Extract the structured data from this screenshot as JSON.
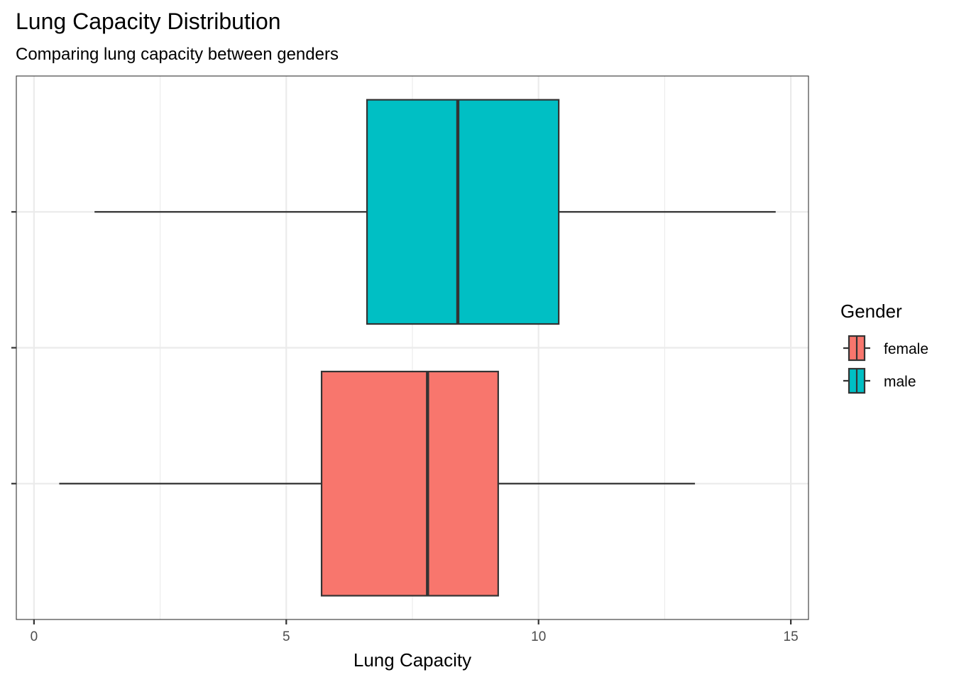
{
  "chart_data": {
    "type": "boxplot",
    "title": "Lung Capacity Distribution",
    "subtitle": "Comparing lung capacity between genders",
    "xlabel": "Lung Capacity",
    "ylabel": "",
    "orientation": "horizontal",
    "xlim": [
      -0.35,
      15.35
    ],
    "xticks": [
      0,
      5,
      10,
      15
    ],
    "grid": true,
    "legend": {
      "title": "Gender",
      "position": "right",
      "entries": [
        {
          "label": "female",
          "color": "#F8766D"
        },
        {
          "label": "male",
          "color": "#00BFC4"
        }
      ]
    },
    "series": [
      {
        "name": "female",
        "color": "#F8766D",
        "whisker_low": 0.5,
        "q1": 5.7,
        "median": 7.8,
        "q3": 9.2,
        "whisker_high": 13.1
      },
      {
        "name": "male",
        "color": "#00BFC4",
        "whisker_low": 1.2,
        "q1": 6.6,
        "median": 8.4,
        "q3": 10.4,
        "whisker_high": 14.7
      }
    ]
  }
}
